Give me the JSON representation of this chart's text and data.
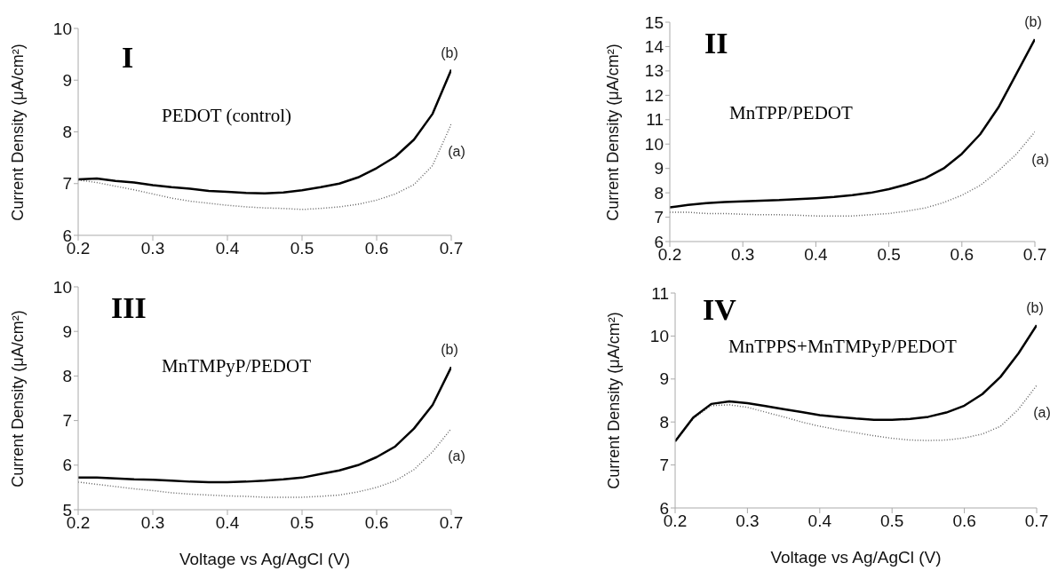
{
  "chart_data": [
    {
      "type": "line",
      "title": "I",
      "annotations": [
        "PEDOT (control)"
      ],
      "ylabel": "Current Density (μA/cm²)",
      "x": [
        0.2,
        0.225,
        0.25,
        0.275,
        0.3,
        0.325,
        0.35,
        0.375,
        0.4,
        0.425,
        0.45,
        0.475,
        0.5,
        0.525,
        0.55,
        0.575,
        0.6,
        0.625,
        0.65,
        0.675,
        0.7
      ],
      "xlim": [
        0.2,
        0.7
      ],
      "xticks": [
        0.2,
        0.3,
        0.4,
        0.5,
        0.6,
        0.7
      ],
      "ylim": [
        6,
        10
      ],
      "yticks": [
        6,
        7,
        8,
        9,
        10
      ],
      "series": [
        {
          "name": "(a)",
          "color": "#666666",
          "line_style": "dotted",
          "values": [
            7.07,
            7.02,
            6.95,
            6.88,
            6.8,
            6.72,
            6.66,
            6.62,
            6.58,
            6.55,
            6.53,
            6.52,
            6.5,
            6.52,
            6.55,
            6.6,
            6.68,
            6.8,
            6.98,
            7.35,
            8.15
          ]
        },
        {
          "name": "(b)",
          "color": "#000000",
          "line_style": "solid",
          "values": [
            7.08,
            7.1,
            7.05,
            7.02,
            6.97,
            6.93,
            6.9,
            6.86,
            6.84,
            6.82,
            6.81,
            6.83,
            6.87,
            6.93,
            7.0,
            7.12,
            7.3,
            7.52,
            7.85,
            8.35,
            9.2
          ]
        }
      ]
    },
    {
      "type": "line",
      "title": "II",
      "annotations": [
        "MnTPP/PEDOT"
      ],
      "ylabel": "Current Density (μA/cm²)",
      "x": [
        0.2,
        0.225,
        0.25,
        0.275,
        0.3,
        0.325,
        0.35,
        0.375,
        0.4,
        0.425,
        0.45,
        0.475,
        0.5,
        0.525,
        0.55,
        0.575,
        0.6,
        0.625,
        0.65,
        0.675,
        0.7
      ],
      "xlim": [
        0.2,
        0.7
      ],
      "xticks": [
        0.2,
        0.3,
        0.4,
        0.5,
        0.6,
        0.7
      ],
      "ylim": [
        6,
        15
      ],
      "yticks": [
        6,
        7,
        8,
        9,
        10,
        11,
        12,
        13,
        14,
        15
      ],
      "series": [
        {
          "name": "(a)",
          "color": "#666666",
          "line_style": "dotted",
          "values": [
            7.2,
            7.2,
            7.15,
            7.15,
            7.12,
            7.1,
            7.1,
            7.08,
            7.05,
            7.05,
            7.05,
            7.1,
            7.15,
            7.25,
            7.38,
            7.6,
            7.9,
            8.3,
            8.9,
            9.6,
            10.5
          ]
        },
        {
          "name": "(b)",
          "color": "#000000",
          "line_style": "solid",
          "values": [
            7.4,
            7.5,
            7.58,
            7.62,
            7.65,
            7.68,
            7.7,
            7.74,
            7.78,
            7.83,
            7.9,
            8.0,
            8.15,
            8.35,
            8.6,
            9.0,
            9.6,
            10.4,
            11.5,
            12.9,
            14.3
          ]
        }
      ]
    },
    {
      "type": "line",
      "title": "III",
      "annotations": [
        "MnTMPyP/PEDOT"
      ],
      "xlabel": "Voltage vs Ag/AgCl (V)",
      "ylabel": "Current Density (μA/cm²)",
      "x": [
        0.2,
        0.225,
        0.25,
        0.275,
        0.3,
        0.325,
        0.35,
        0.375,
        0.4,
        0.425,
        0.45,
        0.475,
        0.5,
        0.525,
        0.55,
        0.575,
        0.6,
        0.625,
        0.65,
        0.675,
        0.7
      ],
      "xlim": [
        0.2,
        0.7
      ],
      "xticks": [
        0.2,
        0.3,
        0.4,
        0.5,
        0.6,
        0.7
      ],
      "ylim": [
        5,
        10
      ],
      "yticks": [
        5,
        6,
        7,
        8,
        9,
        10
      ],
      "series": [
        {
          "name": "(a)",
          "color": "#666666",
          "line_style": "dotted",
          "values": [
            5.62,
            5.57,
            5.52,
            5.47,
            5.43,
            5.38,
            5.35,
            5.33,
            5.31,
            5.3,
            5.28,
            5.28,
            5.28,
            5.3,
            5.33,
            5.4,
            5.5,
            5.65,
            5.9,
            6.3,
            6.82
          ]
        },
        {
          "name": "(b)",
          "color": "#000000",
          "line_style": "solid",
          "values": [
            5.72,
            5.72,
            5.7,
            5.68,
            5.67,
            5.65,
            5.63,
            5.62,
            5.62,
            5.63,
            5.65,
            5.68,
            5.72,
            5.8,
            5.88,
            6.0,
            6.18,
            6.42,
            6.82,
            7.35,
            8.2
          ]
        }
      ]
    },
    {
      "type": "line",
      "title": "IV",
      "annotations": [
        "MnTPPS+MnTMPyP/PEDOT"
      ],
      "xlabel": "Voltage vs Ag/AgCl (V)",
      "ylabel": "Current Density (μA/cm²)",
      "x": [
        0.2,
        0.225,
        0.25,
        0.275,
        0.3,
        0.325,
        0.35,
        0.375,
        0.4,
        0.425,
        0.45,
        0.475,
        0.5,
        0.525,
        0.55,
        0.575,
        0.6,
        0.625,
        0.65,
        0.675,
        0.7
      ],
      "xlim": [
        0.2,
        0.7
      ],
      "xticks": [
        0.2,
        0.3,
        0.4,
        0.5,
        0.6,
        0.7
      ],
      "ylim": [
        6,
        11
      ],
      "yticks": [
        6,
        7,
        8,
        9,
        10,
        11
      ],
      "series": [
        {
          "name": "(a)",
          "color": "#666666",
          "line_style": "dotted",
          "values": [
            7.55,
            8.08,
            8.38,
            8.4,
            8.34,
            8.23,
            8.12,
            8.0,
            7.9,
            7.82,
            7.75,
            7.68,
            7.62,
            7.58,
            7.57,
            7.58,
            7.63,
            7.72,
            7.9,
            8.3,
            8.85
          ]
        },
        {
          "name": "(b)",
          "color": "#000000",
          "line_style": "solid",
          "values": [
            7.55,
            8.1,
            8.42,
            8.48,
            8.44,
            8.37,
            8.3,
            8.23,
            8.16,
            8.12,
            8.08,
            8.05,
            8.05,
            8.07,
            8.12,
            8.22,
            8.38,
            8.65,
            9.05,
            9.6,
            10.25
          ]
        }
      ]
    }
  ]
}
